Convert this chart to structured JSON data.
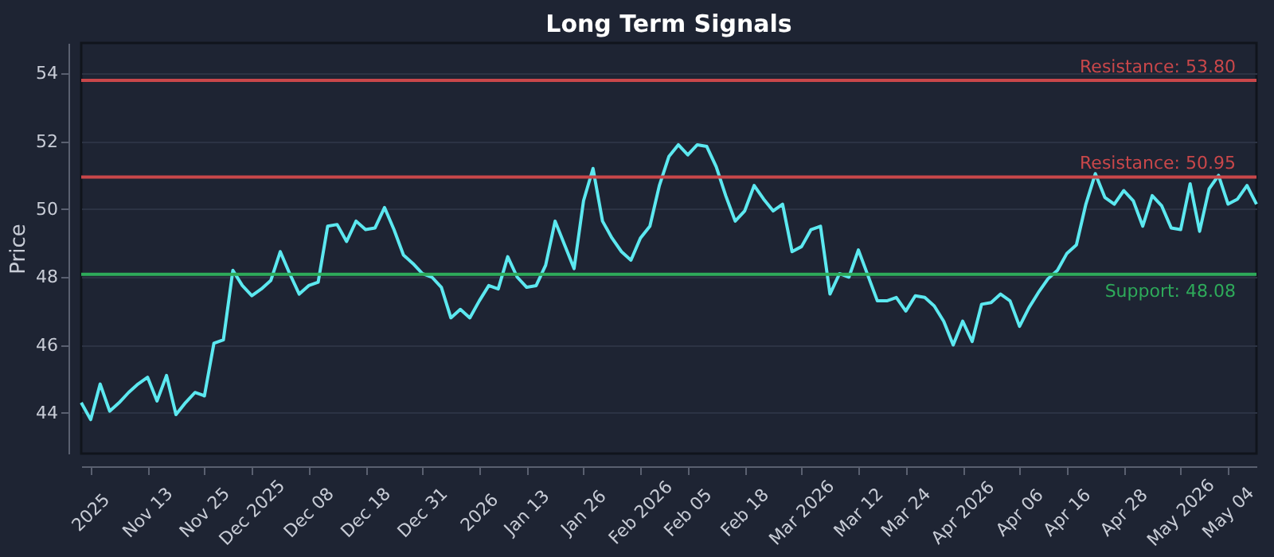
{
  "chart_data": {
    "type": "line",
    "title": "Long Term Signals",
    "ylabel": "Price",
    "categories": [
      null,
      "2025",
      null,
      null,
      null,
      null,
      null,
      "Nov 13",
      null,
      null,
      null,
      null,
      null,
      "Nov 25",
      null,
      null,
      null,
      null,
      "Dec 2025",
      null,
      null,
      null,
      null,
      null,
      "Dec 08",
      null,
      null,
      null,
      null,
      null,
      "Dec 18",
      null,
      null,
      null,
      null,
      null,
      "Dec 31",
      null,
      null,
      null,
      null,
      null,
      "2026",
      null,
      null,
      null,
      null,
      "Jan 13",
      null,
      null,
      null,
      null,
      null,
      "Jan 26",
      null,
      null,
      null,
      null,
      null,
      "Feb 2026",
      null,
      null,
      null,
      null,
      "Feb 05",
      null,
      null,
      null,
      null,
      null,
      "Feb 18",
      null,
      null,
      null,
      null,
      null,
      "Mar 2026",
      null,
      null,
      null,
      null,
      null,
      "Mar 12",
      null,
      null,
      null,
      null,
      "Mar 24",
      null,
      null,
      null,
      null,
      null,
      "Apr 2026",
      null,
      null,
      null,
      null,
      null,
      "Apr 06",
      null,
      null,
      null,
      null,
      "Apr 16",
      null,
      null,
      null,
      null,
      null,
      "Apr 28",
      null,
      null,
      null,
      null,
      null,
      "May 2026",
      null,
      null,
      null,
      null,
      "May 04",
      null,
      null,
      null
    ],
    "series": [
      {
        "color": "#5ce8f0",
        "values": [
          44.3,
          43.8,
          44.85,
          44.05,
          44.3,
          44.6,
          44.85,
          45.05,
          44.35,
          45.1,
          43.95,
          44.3,
          44.6,
          44.5,
          46.05,
          46.15,
          48.2,
          47.75,
          47.45,
          47.65,
          47.9,
          48.75,
          48.1,
          47.5,
          47.75,
          47.85,
          49.5,
          49.55,
          49.05,
          49.65,
          49.4,
          49.45,
          50.05,
          49.4,
          48.65,
          48.4,
          48.1,
          48.0,
          47.7,
          46.8,
          47.05,
          46.8,
          47.3,
          47.75,
          47.65,
          48.6,
          48.0,
          47.7,
          47.75,
          48.35,
          49.65,
          48.95,
          48.25,
          50.25,
          51.2,
          49.65,
          49.15,
          48.75,
          48.5,
          49.15,
          49.5,
          50.7,
          51.55,
          51.9,
          51.6,
          51.9,
          51.85,
          51.25,
          50.4,
          49.65,
          49.95,
          50.7,
          50.3,
          49.95,
          50.15,
          48.75,
          48.9,
          49.4,
          49.5,
          47.5,
          48.1,
          48.0,
          48.8,
          48.05,
          47.3,
          47.3,
          47.4,
          47.0,
          47.45,
          47.4,
          47.15,
          46.7,
          46.0,
          46.7,
          46.1,
          47.2,
          47.25,
          47.5,
          47.3,
          46.55,
          47.1,
          47.55,
          47.95,
          48.2,
          48.7,
          48.95,
          50.15,
          51.05,
          50.35,
          50.15,
          50.55,
          50.25,
          49.5,
          50.4,
          50.1,
          49.45,
          49.4,
          50.75,
          49.35,
          50.6,
          51.0,
          50.15,
          50.3,
          50.7,
          50.15
        ]
      }
    ],
    "ylim": [
      42.8,
      54.9
    ],
    "yticks": [
      44,
      46,
      48,
      50,
      52,
      54
    ],
    "grid": "y",
    "marker": "none",
    "line_style": "solid",
    "ref_lines": [
      {
        "axis": "y",
        "value": 53.8,
        "label": "Resistance: 53.80",
        "color": "#c9474a"
      },
      {
        "axis": "y",
        "value": 50.95,
        "label": "Resistance: 50.95",
        "color": "#c9474a"
      },
      {
        "axis": "y",
        "value": 48.08,
        "label": "Support: 48.08",
        "color": "#2eaa5a"
      }
    ]
  }
}
